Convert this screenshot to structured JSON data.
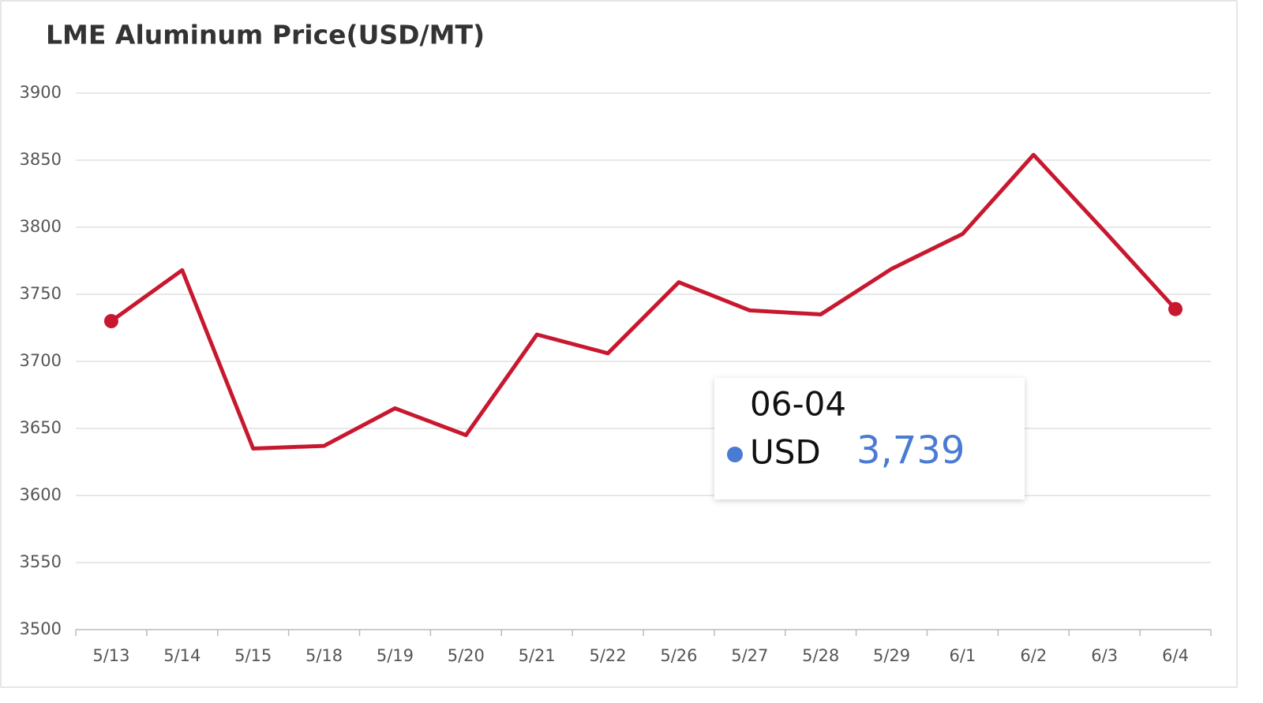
{
  "chart_data": {
    "type": "line",
    "title": "LME Aluminum Price(USD/MT)",
    "categories": [
      "5/13",
      "5/14",
      "5/15",
      "5/18",
      "5/19",
      "5/20",
      "5/21",
      "5/22",
      "5/26",
      "5/27",
      "5/28",
      "5/29",
      "6/1",
      "6/2",
      "6/3",
      "6/4"
    ],
    "series": [
      {
        "name": "USD",
        "color": "#c8182f",
        "values": [
          3730,
          3768,
          3635,
          3637,
          3665,
          3645,
          3720,
          3706,
          3759,
          3738,
          3735,
          3769,
          3795,
          3854,
          3797,
          3739
        ]
      }
    ],
    "ylim": [
      3500,
      3900
    ],
    "yticks": [
      3500,
      3550,
      3600,
      3650,
      3700,
      3750,
      3800,
      3850,
      3900
    ],
    "grid": true,
    "tooltip": {
      "label": "06-04",
      "name": "USD",
      "value": 3739,
      "value_label": "3,739",
      "color": "#4a7bd4"
    }
  }
}
